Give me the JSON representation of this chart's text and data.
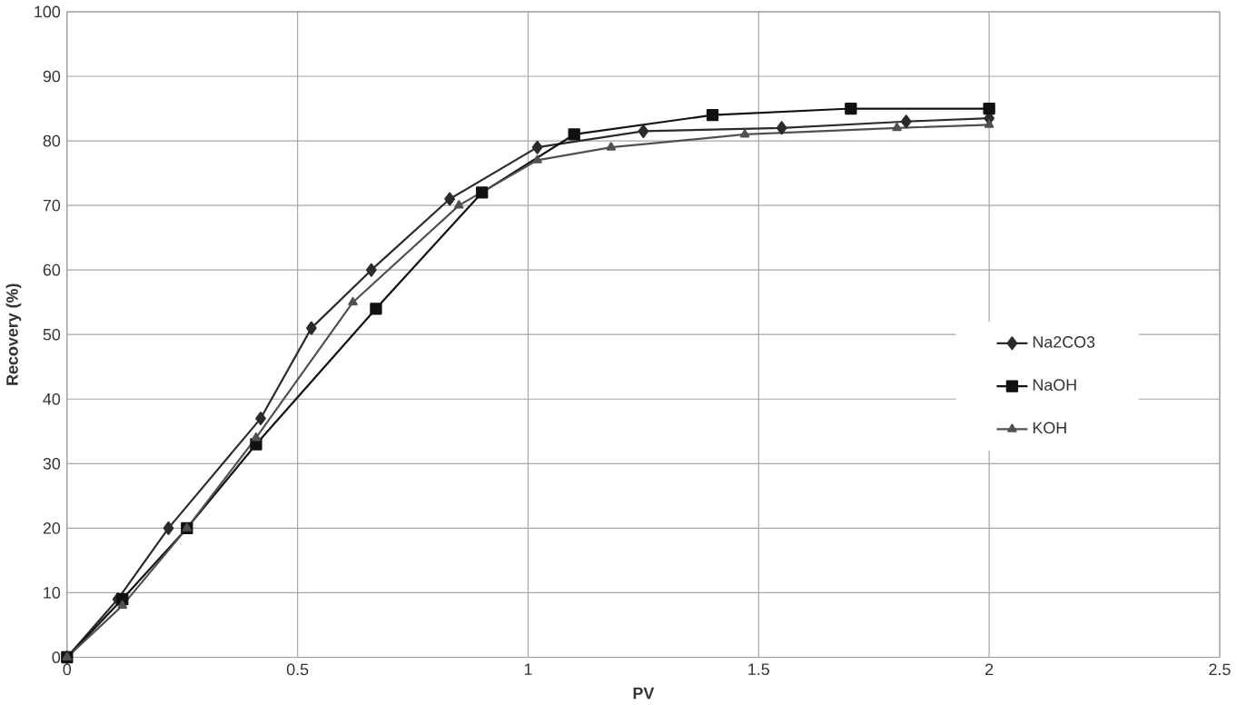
{
  "chart_data": {
    "type": "line",
    "xlabel": "PV",
    "ylabel": "Recovery (%)",
    "xlim": [
      0,
      2.5
    ],
    "xticks": [
      0,
      0.5,
      1,
      1.5,
      2,
      2.5
    ],
    "ylim": [
      0,
      100
    ],
    "yticks": [
      0,
      10,
      20,
      30,
      40,
      50,
      60,
      70,
      80,
      90,
      100
    ],
    "grid": true,
    "legend": "right",
    "series": [
      {
        "name": "Na2CO3",
        "color": "#2b2b2b",
        "marker": "diamond",
        "x": [
          0,
          0.11,
          0.22,
          0.42,
          0.53,
          0.66,
          0.83,
          1.02,
          1.25,
          1.55,
          1.82,
          2.0
        ],
        "values": [
          0,
          9,
          20,
          37,
          51,
          60,
          71,
          79,
          81.5,
          82,
          83,
          83.5
        ]
      },
      {
        "name": "NaOH",
        "color": "#111111",
        "marker": "square",
        "x": [
          0,
          0.12,
          0.26,
          0.41,
          0.67,
          0.9,
          1.1,
          1.4,
          1.7,
          2.0
        ],
        "values": [
          0,
          9,
          20,
          33,
          54,
          72,
          81,
          84,
          85,
          85
        ]
      },
      {
        "name": "KOH",
        "color": "#505050",
        "marker": "triangle",
        "x": [
          0,
          0.12,
          0.26,
          0.41,
          0.62,
          0.85,
          1.02,
          1.18,
          1.47,
          1.8,
          2.0
        ],
        "values": [
          0,
          8,
          20,
          34,
          55,
          70,
          77,
          79,
          81,
          82,
          82.5
        ]
      }
    ]
  }
}
